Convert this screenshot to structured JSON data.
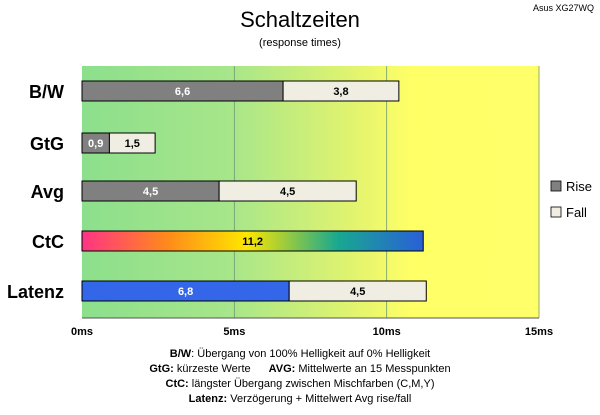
{
  "chart_data": {
    "type": "bar",
    "orientation": "horizontal",
    "stacked": true,
    "title": "Schaltzeiten",
    "subtitle": "(response times)",
    "corner_label": "Asus XG27WQ",
    "categories": [
      "B/W",
      "GtG",
      "Avg",
      "CtC",
      "Latenz"
    ],
    "series": [
      {
        "name": "Rise",
        "values": [
          6.6,
          0.9,
          4.5,
          11.2,
          6.8
        ],
        "labels": [
          "6,6",
          "0,9",
          "4,5",
          "11,2",
          "6,8"
        ]
      },
      {
        "name": "Fall",
        "values": [
          3.8,
          1.5,
          4.5,
          null,
          4.5
        ],
        "labels": [
          "3,8",
          "1,5",
          "4,5",
          "",
          "4,5"
        ]
      }
    ],
    "xlim": [
      0,
      15
    ],
    "x_ticks": [
      0,
      5,
      10,
      15
    ],
    "x_tick_labels": [
      "0ms",
      "5ms",
      "10ms",
      "15ms"
    ],
    "grid": true,
    "legend_position": "right",
    "colors": {
      "rise": "#808080",
      "fall": "#f0eee2",
      "latenz_rise": "#3366e8",
      "ctc_gradient": [
        "#ff3385",
        "#ff8a1a",
        "#ffe600",
        "#18a890",
        "#2a5fd8"
      ],
      "background_gradient": [
        "#8cdf8c",
        "#ffff66"
      ]
    }
  },
  "footer": {
    "line1_key": "B/W",
    "line1_text": ":  Übergang von 100% Helligkeit auf 0% Helligkeit",
    "line2_key": "GtG:",
    "line2_text": " kürzeste  Werte",
    "line2_key2": "AVG:",
    "line2_text2": " Mittelwerte  an 15 Messpunkten",
    "line3_key": "CtC:",
    "line3_text": " längster Übergang  zwischen Mischfarben (C,M,Y)",
    "line4_key": "Latenz:",
    "line4_text": " Verzögerung  + Mittelwert Avg rise/fall"
  }
}
